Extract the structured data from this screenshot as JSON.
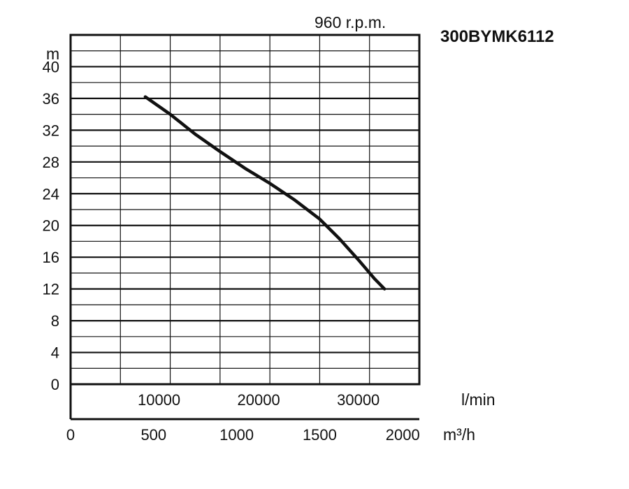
{
  "chart_data": {
    "type": "line",
    "title": "960 r.p.m.",
    "model": "300BYMK6112",
    "ylabel": "m",
    "xlabel": "l/min",
    "x2label": "m³/h",
    "xlim": [
      0,
      35000
    ],
    "ylim": [
      0,
      44
    ],
    "y_ticks": [
      "0",
      "4",
      "8",
      "12",
      "16",
      "20",
      "24",
      "28",
      "32",
      "36",
      "40"
    ],
    "x_ticks": [
      {
        "value": 10000,
        "label": "10000"
      },
      {
        "value": 20000,
        "label": "20000"
      },
      {
        "value": 30000,
        "label": "30000"
      }
    ],
    "x2_ticks": [
      {
        "value": 0,
        "label": "0"
      },
      {
        "value": 500,
        "label": "500"
      },
      {
        "value": 1000,
        "label": "1000"
      },
      {
        "value": 1500,
        "label": "1500"
      },
      {
        "value": 2000,
        "label": "2000"
      }
    ],
    "x2lim": [
      0,
      2100
    ],
    "grid": true,
    "series": [
      {
        "color": "#111111",
        "points": [
          [
            7500,
            36.2
          ],
          [
            10000,
            34.0
          ],
          [
            12500,
            31.5
          ],
          [
            15000,
            29.3
          ],
          [
            17500,
            27.2
          ],
          [
            20000,
            25.3
          ],
          [
            22500,
            23.2
          ],
          [
            25000,
            20.8
          ],
          [
            27000,
            18.3
          ],
          [
            29000,
            15.5
          ],
          [
            30500,
            13.3
          ],
          [
            31500,
            12.0
          ]
        ]
      }
    ]
  }
}
